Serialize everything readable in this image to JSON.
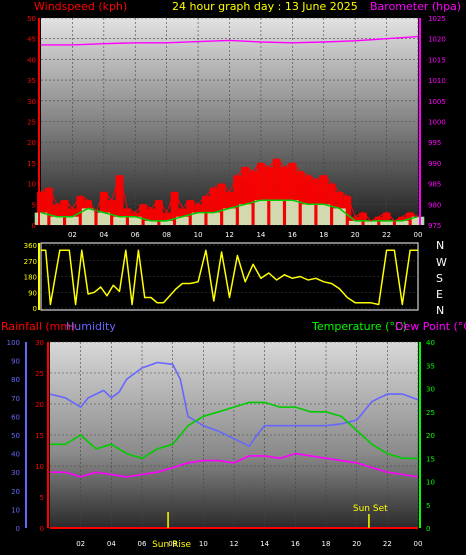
{
  "header": {
    "title": "24 hour graph day : 13 June 2025",
    "wind_label": "Windspeed (kph)",
    "baro_label": "Barometer (hpa)"
  },
  "direction_labels": [
    "N",
    "W",
    "S",
    "E",
    "N"
  ],
  "bottom_legend": {
    "rain_label": "Rainfall (mm)",
    "humidity_label": "Humidity",
    "temp_label": "Temperature (°C)",
    "dew_label": "Dew Point (°C)",
    "sunrise_label": "Sun Rise",
    "sunset_label": "Sun Set"
  },
  "colors": {
    "wind": "#ff0000",
    "wind_avg": "#00cc00",
    "wind_light": "#ccffcc",
    "barometer": "#ff00ff",
    "direction": "#ffff00",
    "humidity": "#6666ff",
    "temperature": "#00cc00",
    "dewpoint": "#ff00ff",
    "rain": "#ff0000",
    "sun_marker": "#ffff00",
    "axis_red": "#ff0000",
    "axis_blue": "#6666ff",
    "axis_green": "#00ff00"
  },
  "chart_data": [
    {
      "id": "wind_baro",
      "type": "line",
      "x_tick_labels": [
        "02",
        "04",
        "06",
        "08",
        "10",
        "12",
        "14",
        "16",
        "18",
        "20",
        "22",
        "00"
      ],
      "y_left": {
        "ticks": [
          0,
          5,
          10,
          15,
          20,
          25,
          30,
          35,
          40,
          45,
          50
        ],
        "ylim": [
          0,
          50
        ]
      },
      "y_right": {
        "ticks": [
          975,
          980,
          985,
          990,
          995,
          1000,
          1005,
          1010,
          1015,
          1020,
          1025
        ],
        "ylim": [
          975,
          1025
        ]
      },
      "series": [
        {
          "role": "gust",
          "x": [
            0,
            0.5,
            1,
            1.5,
            2,
            2.5,
            3,
            3.5,
            4,
            4.5,
            5,
            5.5,
            6,
            6.5,
            7,
            7.5,
            8,
            8.5,
            9,
            9.5,
            10,
            10.5,
            11,
            11.5,
            12,
            12.5,
            13,
            13.5,
            14,
            14.5,
            15,
            15.5,
            16,
            16.5,
            17,
            17.5,
            18,
            18.5,
            19,
            19.5,
            20,
            20.5,
            21,
            21.5,
            22,
            22.5,
            23,
            23.5,
            24
          ],
          "values": [
            8,
            9,
            5,
            6,
            4,
            7,
            6,
            3,
            8,
            6,
            12,
            4,
            3,
            5,
            4,
            6,
            3,
            8,
            4,
            6,
            5,
            7,
            9,
            10,
            8,
            12,
            14,
            13,
            15,
            14,
            16,
            14,
            15,
            13,
            12,
            11,
            12,
            10,
            8,
            7,
            2,
            3,
            1,
            2,
            3,
            1,
            2,
            3,
            2
          ]
        },
        {
          "role": "average",
          "x": [
            0,
            1,
            2,
            3,
            4,
            5,
            6,
            7,
            8,
            9,
            10,
            11,
            12,
            13,
            14,
            15,
            16,
            17,
            18,
            19,
            20,
            21,
            22,
            23,
            24
          ],
          "values": [
            3,
            2,
            2,
            4,
            3,
            2,
            2,
            1,
            1,
            2,
            3,
            3,
            4,
            5,
            6,
            6,
            6,
            5,
            5,
            4,
            1,
            1,
            1,
            1,
            2
          ]
        },
        {
          "role": "barometer",
          "x": [
            0,
            2,
            4,
            6,
            8,
            10,
            12,
            14,
            16,
            18,
            20,
            22,
            24
          ],
          "values": [
            1018.5,
            1018.5,
            1018.8,
            1019,
            1019,
            1019.3,
            1019.6,
            1019.2,
            1019,
            1019.2,
            1019.5,
            1020,
            1020.5
          ]
        }
      ]
    },
    {
      "id": "wind_direction",
      "type": "line",
      "y": {
        "ticks": [
          0,
          90,
          180,
          270,
          360
        ],
        "ylim": [
          0,
          360
        ]
      },
      "series": [
        {
          "role": "direction",
          "x": [
            0,
            0.3,
            0.6,
            1.2,
            1.8,
            2.2,
            2.6,
            3,
            3.4,
            3.8,
            4.2,
            4.6,
            5,
            5.4,
            5.8,
            6.2,
            6.6,
            7,
            7.4,
            7.8,
            8.2,
            8.6,
            9,
            9.5,
            10,
            10.5,
            11,
            11.5,
            12,
            12.5,
            13,
            13.5,
            14,
            14.5,
            15,
            15.5,
            16,
            16.5,
            17,
            17.5,
            18,
            18.5,
            19,
            19.5,
            20,
            20.5,
            21,
            21.5,
            22,
            22.5,
            23,
            23.5,
            24
          ],
          "values": [
            330,
            330,
            20,
            330,
            330,
            20,
            330,
            80,
            90,
            120,
            70,
            130,
            95,
            330,
            20,
            330,
            60,
            60,
            30,
            30,
            70,
            110,
            140,
            140,
            150,
            330,
            40,
            320,
            60,
            300,
            150,
            250,
            170,
            200,
            160,
            190,
            170,
            180,
            160,
            170,
            150,
            140,
            110,
            60,
            30,
            30,
            30,
            20,
            330,
            330,
            20,
            330,
            330
          ]
        }
      ]
    },
    {
      "id": "temp_hum_rain",
      "type": "line",
      "x_tick_labels": [
        "02",
        "04",
        "06",
        "08",
        "10",
        "12",
        "14",
        "16",
        "18",
        "20",
        "22",
        "00"
      ],
      "y_rain": {
        "ticks": [
          0,
          5,
          10,
          15,
          20,
          25,
          30
        ],
        "ylim": [
          0,
          30
        ]
      },
      "y_humidity": {
        "ticks": [
          0,
          10,
          20,
          30,
          40,
          50,
          60,
          70,
          80,
          90,
          100
        ],
        "ylim": [
          0,
          100
        ]
      },
      "y_temp": {
        "ticks": [
          0,
          5,
          10,
          15,
          20,
          25,
          30,
          35,
          40
        ],
        "ylim": [
          0,
          40
        ]
      },
      "series": [
        {
          "role": "humidity",
          "x": [
            0,
            1,
            2,
            2.5,
            3,
            3.5,
            4,
            4.5,
            5,
            6,
            7,
            8,
            8.5,
            9,
            10,
            11,
            12,
            13,
            13.5,
            14,
            15,
            16,
            17,
            18,
            19,
            20,
            21,
            22,
            23,
            24
          ],
          "values": [
            72,
            70,
            65,
            70,
            72,
            74,
            70,
            73,
            80,
            86,
            89,
            88,
            80,
            60,
            55,
            52,
            48,
            44,
            50,
            55,
            55,
            55,
            55,
            55,
            56,
            58,
            68,
            72,
            72,
            69
          ]
        },
        {
          "role": "temperature",
          "x": [
            0,
            1,
            2,
            3,
            4,
            5,
            6,
            7,
            8,
            9,
            10,
            11,
            12,
            13,
            14,
            15,
            16,
            17,
            18,
            19,
            20,
            21,
            22,
            23,
            24
          ],
          "values": [
            18,
            18,
            20,
            17,
            18,
            16,
            15,
            17,
            18,
            22,
            24,
            25,
            26,
            27,
            27,
            26,
            26,
            25,
            25,
            24,
            21,
            18,
            16,
            15,
            15
          ]
        },
        {
          "role": "dewpoint",
          "x": [
            0,
            1,
            2,
            3,
            4,
            5,
            6,
            7,
            8,
            9,
            10,
            11,
            12,
            13,
            14,
            15,
            16,
            17,
            18,
            19,
            20,
            21,
            22,
            23,
            24
          ],
          "values": [
            12,
            12,
            11,
            12,
            11.5,
            11,
            11.5,
            12,
            13,
            14,
            14.5,
            14.5,
            14,
            15.5,
            15.5,
            15,
            16,
            15.5,
            15,
            14.5,
            14,
            13,
            12,
            11.5,
            11
          ]
        },
        {
          "role": "rain",
          "x": [
            0,
            24
          ],
          "values": [
            0,
            0
          ]
        }
      ],
      "sunrise_hour": 7.7,
      "sunset_hour": 20.8
    }
  ]
}
